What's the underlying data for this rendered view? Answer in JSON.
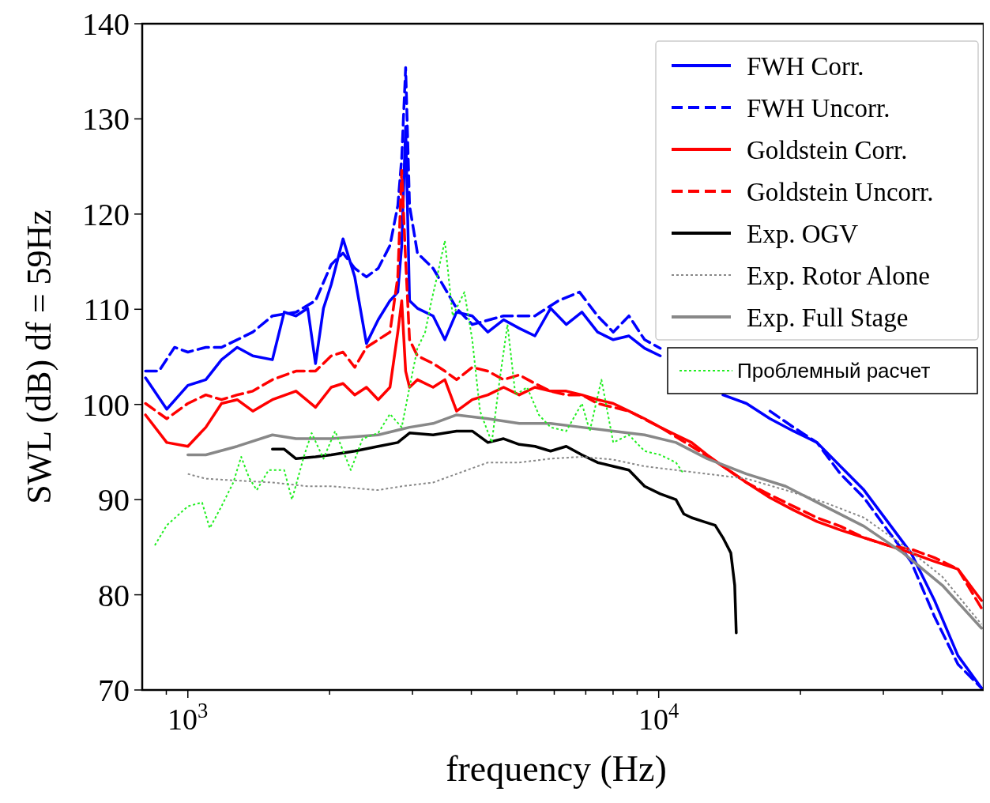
{
  "chart_data": {
    "type": "line",
    "xlabel": "frequency (Hz)",
    "ylabel": "SWL (dB) df = 59Hz",
    "log": "x",
    "grid": false,
    "legend": "top right",
    "marker": "none",
    "xlim": [
      800,
      49000
    ],
    "ylim": [
      70,
      140
    ],
    "xticks": [
      {
        "value": 900,
        "label": null
      },
      {
        "value": 1000,
        "label": "10$^{3}$"
      },
      {
        "value": 2000,
        "label": null
      },
      {
        "value": 3000,
        "label": null
      },
      {
        "value": 4000,
        "label": null
      },
      {
        "value": 5000,
        "label": null
      },
      {
        "value": 6000,
        "label": null
      },
      {
        "value": 7000,
        "label": null
      },
      {
        "value": 8000,
        "label": null
      },
      {
        "value": 9000,
        "label": null
      },
      {
        "value": 10000,
        "label": "10$^{4}$"
      },
      {
        "value": 20000,
        "label": null
      },
      {
        "value": 30000,
        "label": null
      },
      {
        "value": 40000,
        "label": null
      }
    ],
    "yticks": [
      70,
      80,
      90,
      100,
      110,
      120,
      130,
      140
    ],
    "series": [
      {
        "name": "FWH Corr.",
        "color": "#0000ff",
        "line_style": "solid",
        "x": [
          813,
          902,
          1000,
          1092,
          1179,
          1273,
          1374,
          1512,
          1602,
          1697,
          1797,
          1867,
          1941,
          2016,
          2136,
          2262,
          2395,
          2537,
          2687,
          2792,
          2846,
          2901,
          2957,
          3073,
          3318,
          3514,
          3722,
          4018,
          4338,
          4683,
          5056,
          5459,
          5893,
          6363,
          6869,
          7416,
          8007,
          8645,
          9333,
          10077,
          10880,
          11746,
          12682,
          13692,
          15360,
          17233,
          19331,
          21685,
          24322,
          27290,
          30616,
          34344,
          38531,
          43210,
          48470
        ],
        "values": [
          102.8,
          99.5,
          102.0,
          102.6,
          104.7,
          106.0,
          105.1,
          104.7,
          109.7,
          109.3,
          110.1,
          104.3,
          110.1,
          112.6,
          117.4,
          113.4,
          106.4,
          108.9,
          110.9,
          111.8,
          116.7,
          129.2,
          110.9,
          110.1,
          109.3,
          106.8,
          109.7,
          109.3,
          107.6,
          108.9,
          108.0,
          107.2,
          110.1,
          108.4,
          109.7,
          107.6,
          106.8,
          107.2,
          105.9,
          105.1,
          null,
          null,
          null,
          101.0,
          100.1,
          98.5,
          97.2,
          96.0,
          93.5,
          91.0,
          87.7,
          84.4,
          79.4,
          73.6,
          70.2
        ]
      },
      {
        "name": "FWH Uncorr.",
        "color": "#0000ff",
        "line_style": "dashed",
        "x": [
          813,
          868,
          937,
          1000,
          1092,
          1179,
          1273,
          1374,
          1512,
          1697,
          1867,
          2016,
          2136,
          2262,
          2395,
          2537,
          2687,
          2792,
          2846,
          2901,
          2957,
          3073,
          3318,
          3722,
          4018,
          4683,
          5459,
          6124,
          6790,
          7416,
          8007,
          8645,
          9333,
          10077,
          11746,
          13692,
          15360,
          17233,
          19331,
          21685,
          24322,
          27290,
          30616,
          34344,
          38531,
          43210,
          48470
        ],
        "values": [
          103.5,
          103.5,
          106.0,
          105.5,
          106.0,
          106.0,
          106.8,
          107.6,
          109.3,
          109.7,
          110.9,
          114.7,
          115.9,
          114.3,
          113.4,
          114.3,
          116.7,
          120.9,
          125.9,
          135.4,
          120.9,
          115.9,
          114.3,
          110.1,
          108.4,
          109.3,
          109.3,
          110.9,
          111.8,
          109.3,
          107.6,
          109.3,
          106.8,
          105.9,
          null,
          null,
          null,
          99.3,
          97.6,
          96.0,
          92.7,
          90.2,
          86.8,
          83.5,
          77.7,
          72.7,
          70.2
        ]
      },
      {
        "name": "Goldstein Corr.",
        "color": "#ff0000",
        "line_style": "solid",
        "x": [
          813,
          902,
          1000,
          1092,
          1179,
          1273,
          1374,
          1512,
          1697,
          1867,
          2016,
          2136,
          2262,
          2395,
          2537,
          2687,
          2792,
          2846,
          2901,
          2957,
          3073,
          3318,
          3514,
          3722,
          4018,
          4338,
          4683,
          5056,
          5459,
          5893,
          6363,
          6869,
          7416,
          8007,
          8645,
          9333,
          10077,
          10880,
          11746,
          12682,
          13692,
          15360,
          17233,
          19331,
          21685,
          24322,
          27290,
          30616,
          34344,
          38531,
          43210,
          48470
        ],
        "values": [
          98.9,
          96.0,
          95.6,
          97.6,
          100.1,
          100.5,
          99.3,
          100.5,
          101.4,
          99.7,
          101.8,
          102.2,
          101.0,
          101.8,
          100.5,
          101.8,
          107.6,
          110.9,
          103.5,
          101.8,
          102.6,
          101.8,
          102.6,
          99.3,
          100.5,
          101.0,
          101.8,
          101.0,
          101.8,
          101.4,
          101.4,
          101.0,
          100.5,
          100.1,
          99.3,
          98.5,
          97.6,
          96.8,
          96.0,
          94.7,
          93.5,
          91.8,
          90.2,
          88.9,
          87.7,
          86.8,
          86.0,
          85.2,
          84.4,
          83.5,
          82.7,
          79.4
        ]
      },
      {
        "name": "Goldstein Uncorr.",
        "color": "#ff0000",
        "line_style": "dashed",
        "x": [
          813,
          902,
          1000,
          1092,
          1179,
          1273,
          1374,
          1512,
          1697,
          1867,
          2016,
          2136,
          2262,
          2395,
          2537,
          2687,
          2792,
          2846,
          2901,
          2957,
          3073,
          3318,
          3514,
          3722,
          4018,
          4338,
          4683,
          5056,
          5459,
          5893,
          6363,
          6869,
          7416,
          8645,
          10077,
          11746,
          13692,
          15360,
          17233,
          19331,
          21685,
          24322,
          27290,
          30616,
          34344,
          38531,
          43210,
          48470
        ],
        "values": [
          100.1,
          98.5,
          100.1,
          101.0,
          100.5,
          101.0,
          101.4,
          102.6,
          103.5,
          103.5,
          105.1,
          105.5,
          103.9,
          106.0,
          106.8,
          107.6,
          113.4,
          124.6,
          115.1,
          106.8,
          105.1,
          104.3,
          103.5,
          102.6,
          103.9,
          103.5,
          102.6,
          103.1,
          102.2,
          101.4,
          101.0,
          101.0,
          100.1,
          99.3,
          97.6,
          95.6,
          93.5,
          91.8,
          90.5,
          89.3,
          88.1,
          87.2,
          86.0,
          85.2,
          84.8,
          83.9,
          82.7,
          78.6
        ]
      },
      {
        "name": "Exp. OGV",
        "color": "#000000",
        "line_style": "solid",
        "x": [
          1512,
          1602,
          1697,
          1867,
          2016,
          2262,
          2537,
          2792,
          2957,
          3318,
          3722,
          4018,
          4338,
          4683,
          5056,
          5459,
          5893,
          6363,
          6869,
          7416,
          8007,
          8645,
          9333,
          10077,
          10880,
          11302,
          11746,
          12439,
          13180,
          13692,
          14228,
          14502,
          14612
        ],
        "values": [
          95.3,
          95.3,
          94.3,
          94.5,
          94.7,
          95.1,
          95.6,
          96.0,
          97.0,
          96.8,
          97.2,
          97.2,
          96.0,
          96.4,
          95.8,
          95.6,
          95.1,
          95.6,
          94.7,
          93.9,
          93.5,
          93.1,
          91.4,
          90.6,
          90.0,
          88.5,
          88.1,
          87.7,
          87.3,
          86.0,
          84.4,
          81.0,
          76.0
        ]
      },
      {
        "name": "Exp. Rotor Alone",
        "color": "#888888",
        "line_style": "dotted",
        "x": [
          1000,
          1092,
          1273,
          1512,
          1797,
          2016,
          2262,
          2537,
          2846,
          3318,
          3722,
          4338,
          5056,
          5893,
          6869,
          8007,
          9333,
          10880,
          12682,
          15360,
          18603,
          22530,
          27290,
          33040,
          40030,
          48470
        ],
        "values": [
          92.7,
          92.2,
          92.0,
          91.8,
          91.4,
          91.4,
          91.2,
          91.0,
          91.4,
          91.8,
          92.7,
          93.9,
          93.9,
          94.3,
          94.5,
          94.2,
          93.5,
          93.1,
          92.7,
          92.2,
          91.0,
          89.7,
          88.1,
          85.2,
          81.9,
          76.9
        ]
      },
      {
        "name": "Exp. Full Stage",
        "color": "#888888",
        "line_style": "solid",
        "x": [
          1000,
          1092,
          1273,
          1512,
          1697,
          2016,
          2537,
          2957,
          3318,
          3722,
          4338,
          5056,
          5893,
          6869,
          8007,
          9333,
          10880,
          12682,
          15360,
          18603,
          22530,
          27290,
          33040,
          40030,
          48470
        ],
        "values": [
          94.7,
          94.7,
          95.6,
          96.8,
          96.4,
          96.4,
          96.8,
          97.6,
          98.0,
          98.9,
          98.5,
          98.0,
          98.0,
          97.6,
          97.2,
          96.8,
          96.0,
          94.3,
          92.7,
          91.4,
          89.3,
          87.2,
          84.4,
          81.0,
          76.5
        ]
      },
      {
        "name": "Проблемный расчет",
        "color": "#22ee22",
        "line_style": "dotted",
        "x": [
          851,
          902,
          1000,
          1072,
          1113,
          1179,
          1249,
          1298,
          1349,
          1401,
          1484,
          1602,
          1664,
          1763,
          1832,
          1941,
          2055,
          2219,
          2350,
          2537,
          2687,
          2846,
          2957,
          3073,
          3192,
          3292,
          3382,
          3514,
          3651,
          3867,
          4018,
          4174,
          4421,
          4595,
          4774,
          4962,
          5254,
          5566,
          5893,
          6363,
          6869,
          7139,
          7558,
          8007,
          8645,
          9333,
          10077,
          10880,
          11302
        ],
        "values": [
          85.2,
          87.3,
          89.3,
          89.7,
          87.0,
          89.3,
          91.8,
          94.5,
          92.3,
          91.0,
          93.1,
          93.1,
          90.0,
          94.5,
          97.0,
          94.3,
          97.2,
          93.1,
          96.4,
          97.0,
          99.0,
          97.6,
          101.8,
          105.9,
          107.6,
          110.9,
          113.4,
          117.2,
          109.3,
          111.8,
          106.8,
          99.3,
          96.0,
          102.6,
          108.4,
          101.0,
          101.8,
          98.9,
          97.6,
          97.2,
          100.1,
          97.2,
          102.6,
          96.0,
          96.8,
          95.1,
          94.7,
          93.9,
          92.7
        ]
      }
    ]
  }
}
